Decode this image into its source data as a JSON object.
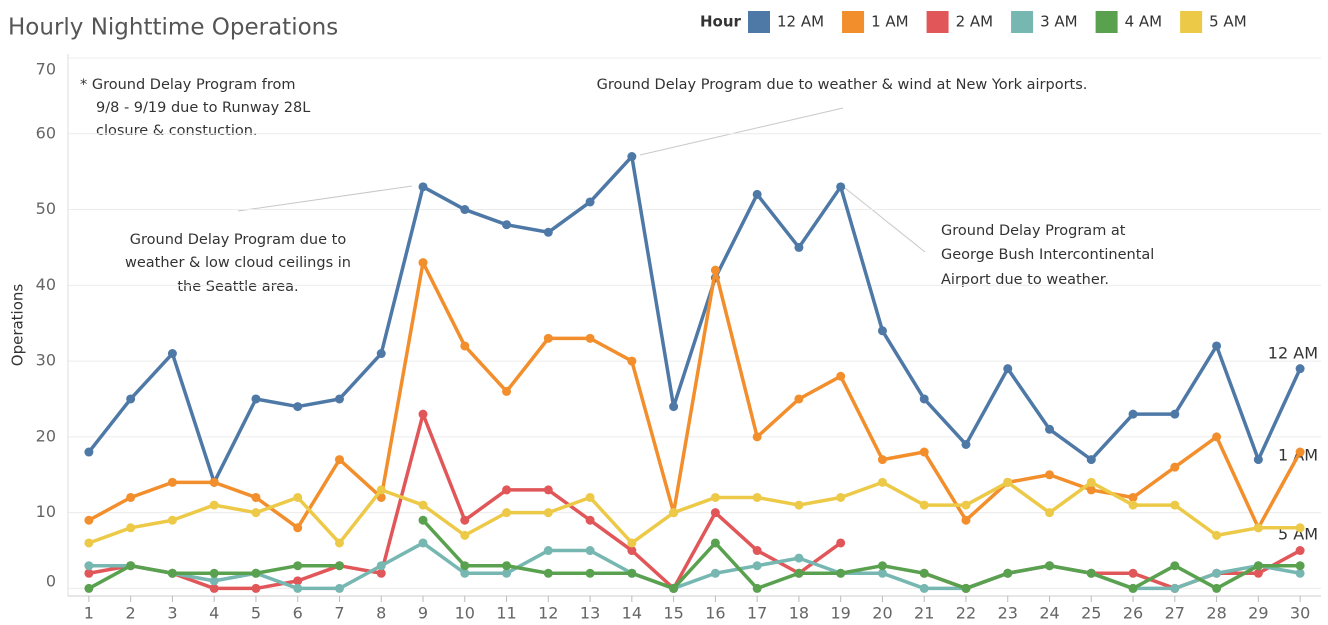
{
  "chart_data": {
    "type": "line",
    "title": "Hourly Nighttime Operations",
    "y_label": "Operations",
    "legend_title": "Hour",
    "x": [
      1,
      2,
      3,
      4,
      5,
      6,
      7,
      8,
      9,
      10,
      11,
      12,
      13,
      14,
      15,
      16,
      17,
      18,
      19,
      20,
      21,
      22,
      23,
      24,
      25,
      26,
      27,
      28,
      29,
      30
    ],
    "xlim": [
      0.5,
      30.5
    ],
    "xticks": [
      1,
      2,
      3,
      4,
      5,
      6,
      7,
      8,
      9,
      10,
      11,
      12,
      13,
      14,
      15,
      16,
      17,
      18,
      19,
      20,
      21,
      22,
      23,
      24,
      25,
      26,
      27,
      28,
      29,
      30
    ],
    "ylim": [
      -1,
      70
    ],
    "yticks": [
      0,
      10,
      20,
      30,
      40,
      50,
      60,
      70
    ],
    "grid": true,
    "series": [
      {
        "name": "12 AM",
        "color": "#4e79a7",
        "values": [
          18,
          25,
          31,
          14,
          25,
          24,
          25,
          31,
          53,
          50,
          48,
          47,
          51,
          57,
          24,
          41,
          52,
          45,
          53,
          34,
          25,
          19,
          29,
          21,
          17,
          23,
          23,
          32,
          17,
          29
        ]
      },
      {
        "name": "1 AM",
        "color": "#f28e2b",
        "values": [
          9,
          12,
          14,
          14,
          12,
          8,
          17,
          12,
          43,
          32,
          26,
          33,
          33,
          30,
          10,
          42,
          20,
          25,
          28,
          17,
          18,
          9,
          14,
          15,
          13,
          12,
          16,
          20,
          8,
          18
        ]
      },
      {
        "name": "2 AM",
        "color": "#e15759",
        "values": [
          2,
          3,
          2,
          0,
          0,
          1,
          3,
          2,
          23,
          9,
          13,
          13,
          9,
          5,
          0,
          10,
          5,
          2,
          6,
          null,
          2,
          0,
          2,
          3,
          2,
          2,
          0,
          2,
          2,
          5
        ]
      },
      {
        "name": "3 AM",
        "color": "#76b7b2",
        "values": [
          3,
          3,
          2,
          1,
          2,
          0,
          0,
          3,
          6,
          2,
          2,
          5,
          5,
          2,
          0,
          2,
          3,
          4,
          2,
          2,
          0,
          0,
          2,
          3,
          2,
          0,
          0,
          2,
          3,
          2
        ]
      },
      {
        "name": "4 AM",
        "color": "#59a14f",
        "values": [
          0,
          3,
          2,
          2,
          2,
          3,
          3,
          null,
          9,
          3,
          3,
          2,
          2,
          2,
          0,
          6,
          0,
          2,
          2,
          3,
          2,
          0,
          2,
          3,
          2,
          0,
          3,
          0,
          3,
          3
        ]
      },
      {
        "name": "5 AM",
        "color": "#edc948",
        "values": [
          6,
          8,
          9,
          11,
          10,
          12,
          6,
          13,
          11,
          7,
          10,
          10,
          12,
          6,
          10,
          12,
          12,
          11,
          12,
          14,
          11,
          11,
          14,
          10,
          14,
          11,
          11,
          7,
          8,
          8
        ]
      }
    ],
    "annotations": [
      {
        "lines": [
          "* Ground Delay Program from",
          "9/8 - 9/19 due to Runway 28L",
          "closure & constuction."
        ]
      },
      {
        "lines": [
          "Ground Delay Program due to weather & wind at New York airports."
        ]
      },
      {
        "lines": [
          "Ground Delay Program due to",
          "weather & low cloud ceilings in",
          "the Seattle area."
        ]
      },
      {
        "lines": [
          "Ground Delay Program at",
          "George Bush Intercontinental",
          "Airport due to weather."
        ]
      }
    ]
  }
}
